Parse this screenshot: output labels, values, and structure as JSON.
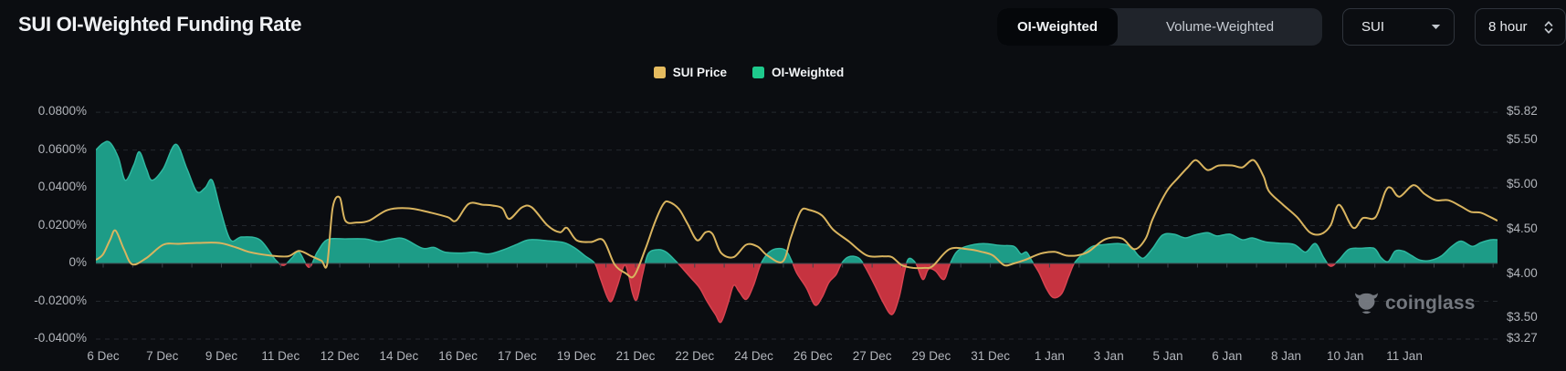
{
  "header": {
    "title": "SUI OI-Weighted Funding Rate",
    "toggle": {
      "options": [
        "OI-Weighted",
        "Volume-Weighted"
      ],
      "active": "OI-Weighted"
    },
    "symbol_select": {
      "value": "SUI"
    },
    "interval_select": {
      "value": "8 hour"
    }
  },
  "legend": [
    {
      "label": "SUI Price",
      "color": "#e5bb5f"
    },
    {
      "label": "OI-Weighted",
      "color": "#1ec98c"
    }
  ],
  "watermark": {
    "text": "coinglass",
    "icon": "coinglass-bull"
  },
  "icons": {
    "symbol_caret": "chevron-down",
    "interval_spinner": "chevron-up-down"
  },
  "chart_data": {
    "type": "mixed",
    "title": "SUI OI-Weighted Funding Rate",
    "grid": "horizontal-dashed",
    "legend_position": "top-center",
    "left_axis": {
      "side": "left",
      "unit": "%",
      "range": [
        -0.0429,
        0.0892
      ],
      "ticks": [
        {
          "label": "0.0800%",
          "value": 0.08
        },
        {
          "label": "0.0600%",
          "value": 0.06
        },
        {
          "label": "0.0400%",
          "value": 0.04
        },
        {
          "label": "0.0200%",
          "value": 0.02
        },
        {
          "label": "0%",
          "value": 0
        },
        {
          "label": "-0.0200%",
          "value": -0.02
        },
        {
          "label": "-0.0400%",
          "value": -0.04
        }
      ]
    },
    "right_axis": {
      "side": "right",
      "unit": "$",
      "range": [
        3.208,
        6.015
      ],
      "ticks": [
        {
          "label": "$5.82",
          "value": 5.82
        },
        {
          "label": "$5.50",
          "value": 5.5
        },
        {
          "label": "$5.00",
          "value": 5.0
        },
        {
          "label": "$4.50",
          "value": 4.5
        },
        {
          "label": "$4.00",
          "value": 4.0
        },
        {
          "label": "$3.50",
          "value": 3.5
        },
        {
          "label": "$3.27",
          "value": 3.27
        }
      ]
    },
    "x_axis": {
      "first_frac": 0.0052,
      "step_frac": 0.0422,
      "labels": [
        "6 Dec",
        "7 Dec",
        "9 Dec",
        "11 Dec",
        "12 Dec",
        "14 Dec",
        "16 Dec",
        "17 Dec",
        "19 Dec",
        "21 Dec",
        "22 Dec",
        "24 Dec",
        "26 Dec",
        "27 Dec",
        "29 Dec",
        "31 Dec",
        "1 Jan",
        "3 Jan",
        "5 Jan",
        "6 Jan",
        "8 Jan",
        "10 Jan",
        "11 Jan"
      ]
    },
    "series": [
      {
        "name": "SUI Price",
        "type": "line",
        "axis": "right",
        "color": "#d9b45f",
        "points": [
          [
            0.0,
            4.16
          ],
          [
            0.005,
            4.22
          ],
          [
            0.01,
            4.38
          ],
          [
            0.014,
            4.49
          ],
          [
            0.02,
            4.28
          ],
          [
            0.026,
            4.11
          ],
          [
            0.036,
            4.18
          ],
          [
            0.048,
            4.33
          ],
          [
            0.059,
            4.34
          ],
          [
            0.072,
            4.35
          ],
          [
            0.088,
            4.35
          ],
          [
            0.1,
            4.3
          ],
          [
            0.109,
            4.25
          ],
          [
            0.124,
            4.21
          ],
          [
            0.137,
            4.2
          ],
          [
            0.145,
            4.26
          ],
          [
            0.154,
            4.2
          ],
          [
            0.161,
            4.15
          ],
          [
            0.165,
            4.11
          ],
          [
            0.169,
            4.75
          ],
          [
            0.174,
            4.86
          ],
          [
            0.178,
            4.6
          ],
          [
            0.186,
            4.58
          ],
          [
            0.195,
            4.6
          ],
          [
            0.208,
            4.72
          ],
          [
            0.223,
            4.74
          ],
          [
            0.239,
            4.69
          ],
          [
            0.251,
            4.64
          ],
          [
            0.257,
            4.6
          ],
          [
            0.266,
            4.79
          ],
          [
            0.276,
            4.78
          ],
          [
            0.283,
            4.77
          ],
          [
            0.29,
            4.74
          ],
          [
            0.295,
            4.62
          ],
          [
            0.304,
            4.75
          ],
          [
            0.311,
            4.75
          ],
          [
            0.322,
            4.55
          ],
          [
            0.331,
            4.47
          ],
          [
            0.336,
            4.52
          ],
          [
            0.343,
            4.38
          ],
          [
            0.353,
            4.36
          ],
          [
            0.362,
            4.38
          ],
          [
            0.37,
            4.11
          ],
          [
            0.378,
            4.01
          ],
          [
            0.384,
            3.98
          ],
          [
            0.392,
            4.28
          ],
          [
            0.399,
            4.59
          ],
          [
            0.405,
            4.79
          ],
          [
            0.409,
            4.81
          ],
          [
            0.416,
            4.73
          ],
          [
            0.422,
            4.57
          ],
          [
            0.429,
            4.38
          ],
          [
            0.435,
            4.47
          ],
          [
            0.44,
            4.45
          ],
          [
            0.446,
            4.24
          ],
          [
            0.455,
            4.19
          ],
          [
            0.464,
            4.33
          ],
          [
            0.472,
            4.31
          ],
          [
            0.479,
            4.21
          ],
          [
            0.49,
            4.14
          ],
          [
            0.496,
            4.42
          ],
          [
            0.503,
            4.71
          ],
          [
            0.509,
            4.72
          ],
          [
            0.518,
            4.66
          ],
          [
            0.526,
            4.5
          ],
          [
            0.537,
            4.37
          ],
          [
            0.55,
            4.21
          ],
          [
            0.562,
            4.2
          ],
          [
            0.568,
            4.19
          ],
          [
            0.575,
            4.1
          ],
          [
            0.583,
            4.07
          ],
          [
            0.591,
            4.07
          ],
          [
            0.597,
            4.09
          ],
          [
            0.609,
            4.28
          ],
          [
            0.622,
            4.28
          ],
          [
            0.632,
            4.25
          ],
          [
            0.64,
            4.21
          ],
          [
            0.648,
            4.1
          ],
          [
            0.655,
            4.12
          ],
          [
            0.663,
            4.16
          ],
          [
            0.674,
            4.23
          ],
          [
            0.684,
            4.25
          ],
          [
            0.692,
            4.21
          ],
          [
            0.7,
            4.21
          ],
          [
            0.708,
            4.25
          ],
          [
            0.72,
            4.39
          ],
          [
            0.732,
            4.4
          ],
          [
            0.741,
            4.28
          ],
          [
            0.749,
            4.4
          ],
          [
            0.754,
            4.62
          ],
          [
            0.764,
            4.93
          ],
          [
            0.772,
            5.08
          ],
          [
            0.779,
            5.2
          ],
          [
            0.785,
            5.28
          ],
          [
            0.793,
            5.17
          ],
          [
            0.801,
            5.22
          ],
          [
            0.811,
            5.22
          ],
          [
            0.818,
            5.2
          ],
          [
            0.826,
            5.28
          ],
          [
            0.833,
            5.1
          ],
          [
            0.837,
            4.93
          ],
          [
            0.847,
            4.78
          ],
          [
            0.857,
            4.64
          ],
          [
            0.866,
            4.47
          ],
          [
            0.874,
            4.45
          ],
          [
            0.881,
            4.55
          ],
          [
            0.887,
            4.78
          ],
          [
            0.897,
            4.52
          ],
          [
            0.904,
            4.63
          ],
          [
            0.913,
            4.64
          ],
          [
            0.92,
            4.93
          ],
          [
            0.924,
            4.97
          ],
          [
            0.93,
            4.87
          ],
          [
            0.94,
            5.0
          ],
          [
            0.948,
            4.9
          ],
          [
            0.956,
            4.83
          ],
          [
            0.965,
            4.83
          ],
          [
            0.974,
            4.76
          ],
          [
            0.981,
            4.7
          ],
          [
            0.988,
            4.69
          ],
          [
            0.995,
            4.64
          ],
          [
            1.0,
            4.6
          ]
        ]
      },
      {
        "name": "OI-Weighted",
        "type": "area",
        "axis": "left",
        "baseline": 0,
        "color_positive": "#1d9c87",
        "color_negative": "#c63340",
        "edge_positive": "#2eb8a0",
        "edge_negative": "#d84350",
        "points": [
          [
            0.0,
            0.06
          ],
          [
            0.005,
            0.0635
          ],
          [
            0.01,
            0.064
          ],
          [
            0.016,
            0.056
          ],
          [
            0.021,
            0.044
          ],
          [
            0.027,
            0.052
          ],
          [
            0.031,
            0.059
          ],
          [
            0.036,
            0.05
          ],
          [
            0.04,
            0.044
          ],
          [
            0.048,
            0.05
          ],
          [
            0.057,
            0.063
          ],
          [
            0.065,
            0.05
          ],
          [
            0.072,
            0.038
          ],
          [
            0.078,
            0.04
          ],
          [
            0.083,
            0.044
          ],
          [
            0.089,
            0.028
          ],
          [
            0.096,
            0.0125
          ],
          [
            0.104,
            0.014
          ],
          [
            0.117,
            0.0125
          ],
          [
            0.128,
            0.002
          ],
          [
            0.134,
            -0.001
          ],
          [
            0.14,
            0.003
          ],
          [
            0.145,
            0.006
          ],
          [
            0.152,
            -0.002
          ],
          [
            0.158,
            0.006
          ],
          [
            0.165,
            0.0125
          ],
          [
            0.178,
            0.013
          ],
          [
            0.192,
            0.013
          ],
          [
            0.202,
            0.0115
          ],
          [
            0.212,
            0.013
          ],
          [
            0.22,
            0.013
          ],
          [
            0.233,
            0.008
          ],
          [
            0.241,
            0.0085
          ],
          [
            0.249,
            0.006
          ],
          [
            0.261,
            0.0055
          ],
          [
            0.27,
            0.006
          ],
          [
            0.28,
            0.005
          ],
          [
            0.29,
            0.007
          ],
          [
            0.3,
            0.01
          ],
          [
            0.309,
            0.0125
          ],
          [
            0.322,
            0.012
          ],
          [
            0.334,
            0.011
          ],
          [
            0.342,
            0.008
          ],
          [
            0.349,
            0.004
          ],
          [
            0.356,
            0.0
          ],
          [
            0.36,
            -0.008
          ],
          [
            0.365,
            -0.018
          ],
          [
            0.368,
            -0.0198
          ],
          [
            0.372,
            -0.012
          ],
          [
            0.377,
            -0.001
          ],
          [
            0.38,
            -0.006
          ],
          [
            0.383,
            -0.016
          ],
          [
            0.386,
            -0.019
          ],
          [
            0.39,
            -0.006
          ],
          [
            0.394,
            0.005
          ],
          [
            0.401,
            0.0073
          ],
          [
            0.407,
            0.006
          ],
          [
            0.414,
            0.001
          ],
          [
            0.419,
            -0.003
          ],
          [
            0.425,
            -0.008
          ],
          [
            0.431,
            -0.0132
          ],
          [
            0.436,
            -0.02
          ],
          [
            0.442,
            -0.027
          ],
          [
            0.446,
            -0.031
          ],
          [
            0.451,
            -0.021
          ],
          [
            0.455,
            -0.0116
          ],
          [
            0.459,
            -0.015
          ],
          [
            0.464,
            -0.019
          ],
          [
            0.469,
            -0.012
          ],
          [
            0.474,
            -0.001
          ],
          [
            0.479,
            0.005
          ],
          [
            0.485,
            0.0077
          ],
          [
            0.492,
            0.007
          ],
          [
            0.496,
            0.002
          ],
          [
            0.5,
            -0.005
          ],
          [
            0.507,
            -0.013
          ],
          [
            0.513,
            -0.022
          ],
          [
            0.518,
            -0.018
          ],
          [
            0.523,
            -0.01
          ],
          [
            0.528,
            -0.006
          ],
          [
            0.532,
            0.0
          ],
          [
            0.537,
            0.0035
          ],
          [
            0.544,
            0.003
          ],
          [
            0.549,
            -0.002
          ],
          [
            0.556,
            -0.012
          ],
          [
            0.562,
            -0.021
          ],
          [
            0.568,
            -0.027
          ],
          [
            0.573,
            -0.018
          ],
          [
            0.577,
            -0.004
          ],
          [
            0.58,
            0.0025
          ],
          [
            0.585,
            0.0
          ],
          [
            0.59,
            -0.0085
          ],
          [
            0.594,
            -0.003
          ],
          [
            0.599,
            -0.004
          ],
          [
            0.605,
            -0.0085
          ],
          [
            0.609,
            -0.001
          ],
          [
            0.614,
            0.006
          ],
          [
            0.621,
            0.009
          ],
          [
            0.633,
            0.0105
          ],
          [
            0.645,
            0.0095
          ],
          [
            0.655,
            0.009
          ],
          [
            0.66,
            0.005
          ],
          [
            0.664,
            0.006
          ],
          [
            0.668,
            0.001
          ],
          [
            0.673,
            -0.005
          ],
          [
            0.678,
            -0.013
          ],
          [
            0.683,
            -0.018
          ],
          [
            0.689,
            -0.016
          ],
          [
            0.694,
            -0.007
          ],
          [
            0.698,
            0.0
          ],
          [
            0.704,
            0.005
          ],
          [
            0.711,
            0.009
          ],
          [
            0.72,
            0.01
          ],
          [
            0.73,
            0.0105
          ],
          [
            0.738,
            0.009
          ],
          [
            0.744,
            0.004
          ],
          [
            0.748,
            0.003
          ],
          [
            0.754,
            0.008
          ],
          [
            0.761,
            0.015
          ],
          [
            0.769,
            0.0155
          ],
          [
            0.777,
            0.0135
          ],
          [
            0.784,
            0.015
          ],
          [
            0.793,
            0.0163
          ],
          [
            0.8,
            0.0145
          ],
          [
            0.809,
            0.0155
          ],
          [
            0.818,
            0.0125
          ],
          [
            0.825,
            0.0135
          ],
          [
            0.834,
            0.0115
          ],
          [
            0.844,
            0.0107
          ],
          [
            0.855,
            0.01
          ],
          [
            0.863,
            0.006
          ],
          [
            0.87,
            0.0105
          ],
          [
            0.876,
            0.003
          ],
          [
            0.881,
            -0.0015
          ],
          [
            0.887,
            0.002
          ],
          [
            0.894,
            0.0075
          ],
          [
            0.903,
            0.008
          ],
          [
            0.912,
            0.008
          ],
          [
            0.917,
            0.003
          ],
          [
            0.922,
            0.001
          ],
          [
            0.927,
            0.0065
          ],
          [
            0.933,
            0.0065
          ],
          [
            0.939,
            0.004
          ],
          [
            0.945,
            0.0017
          ],
          [
            0.952,
            0.0016
          ],
          [
            0.96,
            0.004
          ],
          [
            0.967,
            0.0088
          ],
          [
            0.974,
            0.0118
          ],
          [
            0.982,
            0.009
          ],
          [
            0.988,
            0.011
          ],
          [
            0.995,
            0.0125
          ],
          [
            1.0,
            0.0125
          ]
        ]
      }
    ]
  }
}
